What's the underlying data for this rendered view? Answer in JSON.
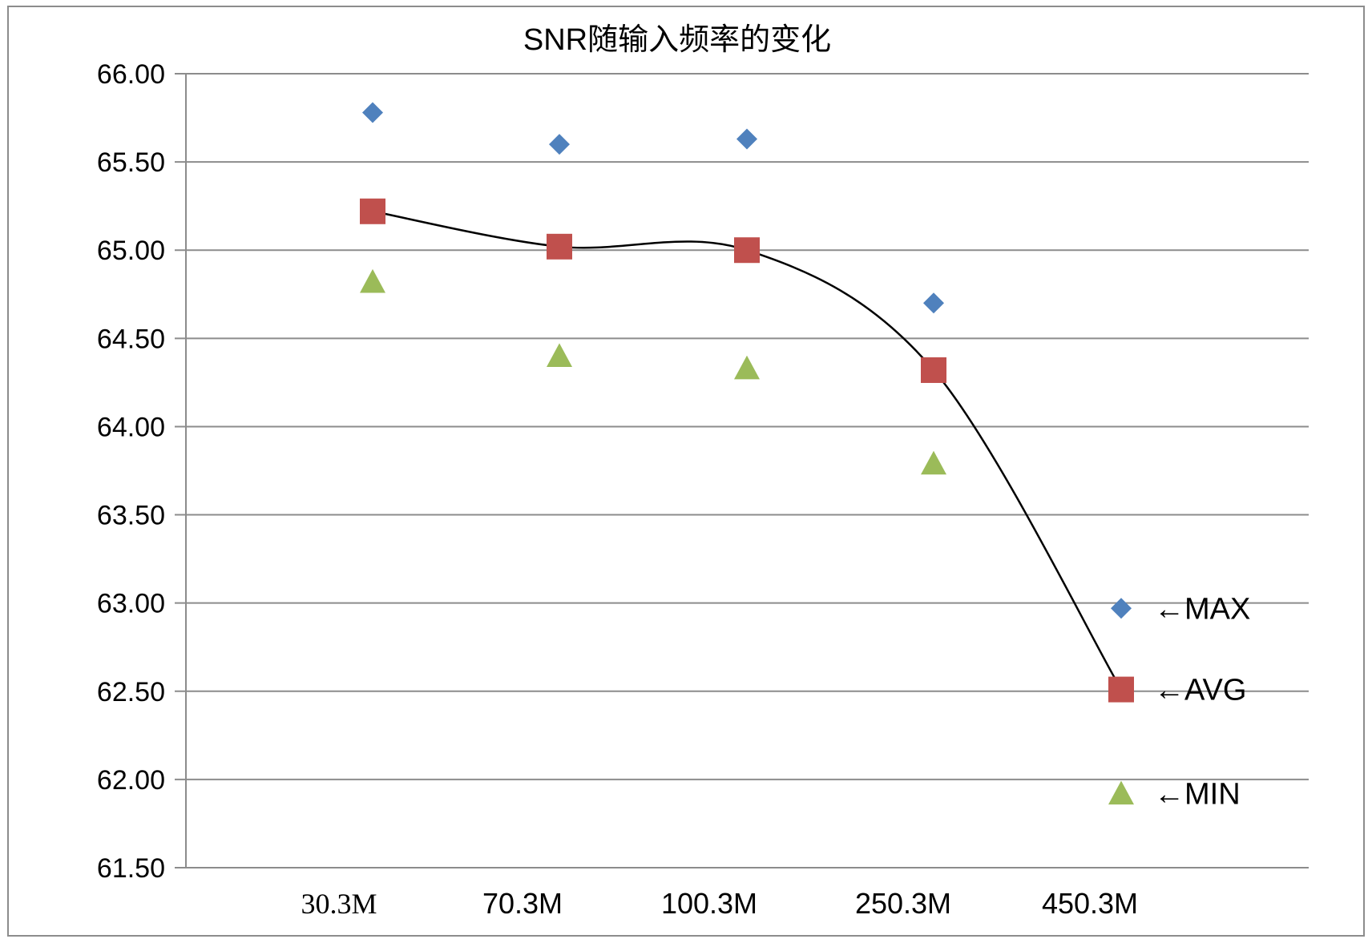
{
  "chart_data": {
    "type": "scatter",
    "title": "SNR随输入频率的变化",
    "xlabel": "",
    "ylabel": "",
    "categories": [
      "30.3M",
      "70.3M",
      "100.3M",
      "250.3M",
      "450.3M"
    ],
    "ylim": [
      61.5,
      66.0
    ],
    "yticks": [
      "66.00",
      "65.50",
      "65.00",
      "64.50",
      "64.00",
      "63.50",
      "63.00",
      "62.50",
      "62.00",
      "61.50"
    ],
    "grid": true,
    "series": [
      {
        "name": "MAX",
        "marker": "diamond",
        "color": "#4F81BD",
        "values": [
          65.78,
          65.6,
          65.63,
          64.7,
          62.97
        ]
      },
      {
        "name": "AVG",
        "marker": "square",
        "color": "#C0504D",
        "values": [
          65.22,
          65.02,
          65.0,
          64.32,
          62.51
        ],
        "trendline": "smooth"
      },
      {
        "name": "MIN",
        "marker": "triangle",
        "color": "#9BBB59",
        "values": [
          64.82,
          64.4,
          64.33,
          63.79,
          61.92
        ]
      }
    ],
    "annotations": [
      {
        "text": "←MAX",
        "series": "MAX"
      },
      {
        "text": "←AVG",
        "series": "AVG"
      },
      {
        "text": "←MIN",
        "series": "MIN"
      }
    ]
  }
}
